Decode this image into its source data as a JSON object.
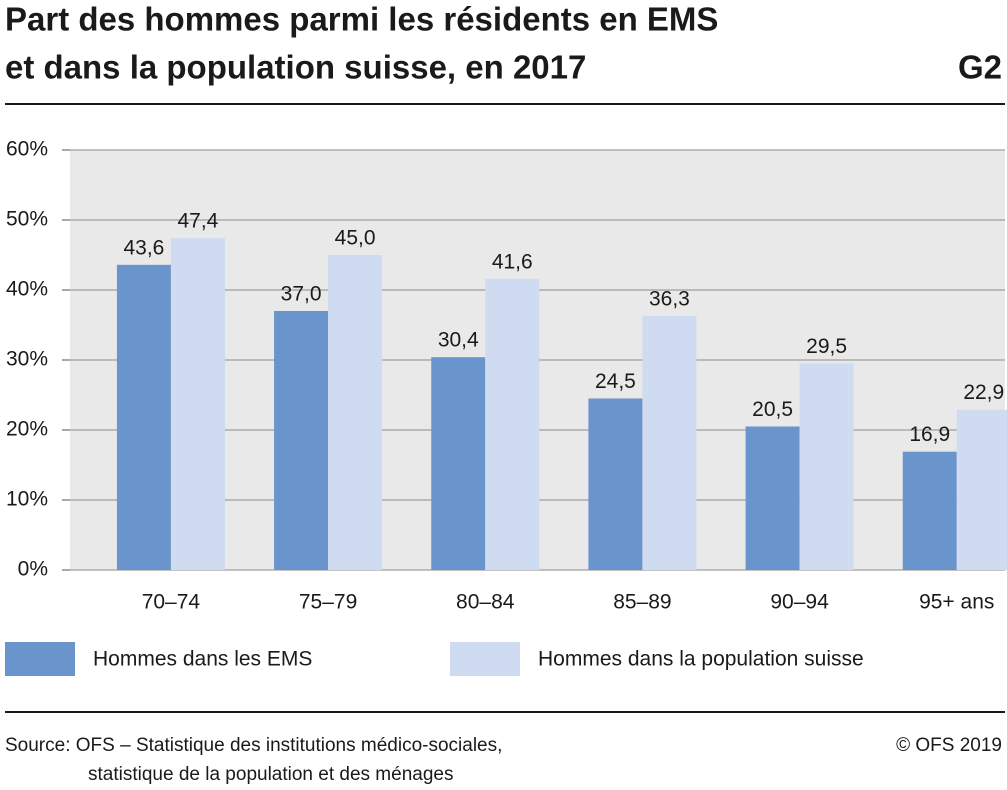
{
  "chart_data": {
    "type": "bar",
    "title": [
      "Part des hommes parmi les résidents en EMS",
      "et dans la population suisse, en 2017"
    ],
    "chart_id": "G2",
    "categories": [
      "70–74",
      "75–79",
      "80–84",
      "85–89",
      "90–94",
      "95+ ans"
    ],
    "series": [
      {
        "name": "Hommes dans les EMS",
        "color": "#6a94cc",
        "values": [
          43.6,
          37.0,
          30.4,
          24.5,
          20.5,
          16.9
        ],
        "value_labels": [
          "43,6",
          "37,0",
          "30,4",
          "24,5",
          "20,5",
          "16,9"
        ]
      },
      {
        "name": "Hommes dans la population suisse",
        "color": "#cfdbf1",
        "values": [
          47.4,
          45.0,
          41.6,
          36.3,
          29.5,
          22.9
        ],
        "value_labels": [
          "47,4",
          "45,0",
          "41,6",
          "36,3",
          "29,5",
          "22,9"
        ]
      }
    ],
    "ylim": [
      0,
      60
    ],
    "yticks": [
      {
        "value": 0,
        "label": "0%"
      },
      {
        "value": 10,
        "label": "10%"
      },
      {
        "value": 20,
        "label": "20%"
      },
      {
        "value": 30,
        "label": "30%"
      },
      {
        "value": 40,
        "label": "40%"
      },
      {
        "value": 50,
        "label": "50%"
      },
      {
        "value": 60,
        "label": "60%"
      }
    ],
    "grid": true,
    "legend": "bottom",
    "source": [
      "Source: OFS – Statistique des institutions médico-sociales,",
      "statistique de la population et des ménages"
    ],
    "copyright": "© OFS 2019"
  }
}
